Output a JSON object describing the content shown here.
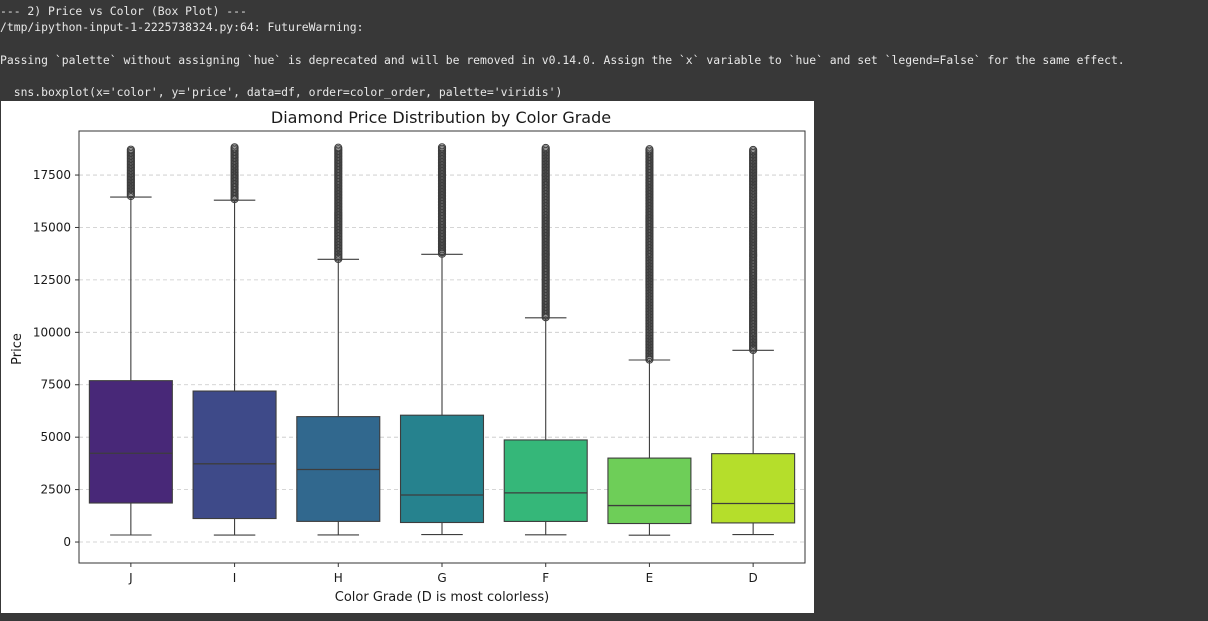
{
  "console": {
    "header": "--- 2) Price vs Color (Box Plot) ---",
    "warning_path": "/tmp/ipython-input-1-2225738324.py:64: FutureWarning:",
    "warning_text": "Passing `palette` without assigning `hue` is deprecated and will be removed in v0.14.0. Assign the `x` variable to `hue` and set `legend=False` for the same effect.",
    "code_line": "  sns.boxplot(x='color', y='price', data=df, order=color_order, palette='viridis')"
  },
  "chart_data": {
    "type": "box",
    "title": "Diamond Price Distribution by Color Grade",
    "xlabel": "Color Grade (D is most colorless)",
    "ylabel": "Price",
    "ylim": [
      -1000,
      19600
    ],
    "yticks": [
      0,
      2500,
      5000,
      7500,
      10000,
      12500,
      15000,
      17500
    ],
    "ytick_labels": [
      "0",
      "2500",
      "5000",
      "7500",
      "10000",
      "12500",
      "15000",
      "17500"
    ],
    "grid": "y-dashed",
    "categories": [
      "J",
      "I",
      "H",
      "G",
      "F",
      "E",
      "D"
    ],
    "boxes": [
      {
        "color": "#482878",
        "whislo": 335,
        "q1": 1860,
        "median": 4234,
        "q3": 7695,
        "whishi": 16450,
        "outlier_min": 16500,
        "outlier_max": 18710
      },
      {
        "color": "#3e4a89",
        "whislo": 334,
        "q1": 1120,
        "median": 3730,
        "q3": 7200,
        "whishi": 16300,
        "outlier_min": 16350,
        "outlier_max": 18823
      },
      {
        "color": "#31688e",
        "whislo": 337,
        "q1": 984,
        "median": 3460,
        "q3": 5980,
        "whishi": 13480,
        "outlier_min": 13500,
        "outlier_max": 18803
      },
      {
        "color": "#26828e",
        "whislo": 354,
        "q1": 931,
        "median": 2242,
        "q3": 6048,
        "whishi": 13720,
        "outlier_min": 13750,
        "outlier_max": 18818
      },
      {
        "color": "#35b779",
        "whislo": 342,
        "q1": 982,
        "median": 2343,
        "q3": 4868,
        "whishi": 10690,
        "outlier_min": 10720,
        "outlier_max": 18791
      },
      {
        "color": "#6ece58",
        "whislo": 326,
        "q1": 882,
        "median": 1739,
        "q3": 4003,
        "whishi": 8680,
        "outlier_min": 8700,
        "outlier_max": 18731
      },
      {
        "color": "#b5de2b",
        "whislo": 357,
        "q1": 911,
        "median": 1838,
        "q3": 4214,
        "whishi": 9140,
        "outlier_min": 9160,
        "outlier_max": 18693
      }
    ]
  }
}
